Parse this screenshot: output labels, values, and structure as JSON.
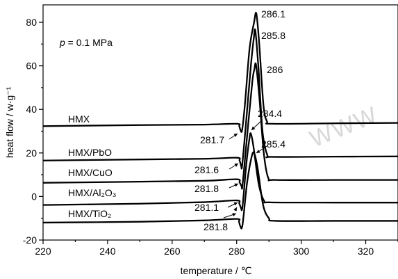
{
  "chart_data": {
    "type": "line",
    "xlabel": "temperature / ℃",
    "ylabel": "heat flow / w·g⁻¹",
    "xlim": [
      220,
      330
    ],
    "ylim": [
      -20,
      88
    ],
    "x_ticks": [
      220,
      240,
      260,
      280,
      300,
      320
    ],
    "y_ticks": [
      -20,
      0,
      20,
      40,
      60,
      80
    ],
    "grid": false,
    "legend": "none",
    "condition_prefix": "p",
    "condition_value": " = 0.1 MPa",
    "watermark": "WWW",
    "series": [
      {
        "name": "HMX",
        "points": [
          [
            220,
            32.3
          ],
          [
            250,
            32.8
          ],
          [
            270,
            33.0
          ],
          [
            280,
            33.4
          ],
          [
            280.8,
            32.3
          ],
          [
            281.2,
            30.4
          ],
          [
            281.7,
            30.6
          ],
          [
            282.6,
            43.0
          ],
          [
            284.0,
            68.0
          ],
          [
            285.4,
            80.0
          ],
          [
            286.1,
            84.0
          ],
          [
            287.0,
            70.0
          ],
          [
            288.3,
            42.0
          ],
          [
            289.4,
            34.5
          ],
          [
            291.0,
            33.4
          ],
          [
            310,
            33.6
          ],
          [
            330,
            33.8
          ]
        ],
        "peak_label": "286.1"
      },
      {
        "name": "HMX/PbO",
        "points": [
          [
            220,
            16.5
          ],
          [
            250,
            17.0
          ],
          [
            270,
            17.3
          ],
          [
            280,
            17.8
          ],
          [
            280.9,
            16.5
          ],
          [
            281.4,
            14.0
          ],
          [
            281.7,
            14.2
          ],
          [
            282.8,
            32.0
          ],
          [
            284.4,
            60.0
          ],
          [
            285.3,
            72.5
          ],
          [
            285.8,
            76.0
          ],
          [
            286.8,
            58.0
          ],
          [
            288.0,
            30.0
          ],
          [
            289.5,
            19.0
          ],
          [
            291.0,
            18.2
          ],
          [
            310,
            18.3
          ],
          [
            330,
            18.4
          ]
        ],
        "peak_label": "285.8"
      },
      {
        "name": "HMX/CuO",
        "points": [
          [
            220,
            6.3
          ],
          [
            250,
            6.8
          ],
          [
            270,
            7.2
          ],
          [
            280,
            7.9
          ],
          [
            280.9,
            6.5
          ],
          [
            281.5,
            4.8
          ],
          [
            281.8,
            5.0
          ],
          [
            283.0,
            24.0
          ],
          [
            284.8,
            52.0
          ],
          [
            285.5,
            58.5
          ],
          [
            286.0,
            60.5
          ],
          [
            287.0,
            46.0
          ],
          [
            288.4,
            20.0
          ],
          [
            289.8,
            8.5
          ],
          [
            292.0,
            7.6
          ],
          [
            310,
            7.6
          ],
          [
            330,
            7.6
          ]
        ],
        "peak_label": "286"
      },
      {
        "name": "HMX/Al₂O₃",
        "points": [
          [
            220,
            -3.9
          ],
          [
            250,
            -3.3
          ],
          [
            270,
            -2.6
          ],
          [
            280,
            -1.8
          ],
          [
            280.8,
            -3.2
          ],
          [
            281.3,
            -5.0
          ],
          [
            281.8,
            -4.8
          ],
          [
            283.0,
            15.0
          ],
          [
            284.0,
            27.0
          ],
          [
            284.4,
            28.8
          ],
          [
            285.2,
            23.0
          ],
          [
            286.8,
            6.0
          ],
          [
            288.5,
            -2.0
          ],
          [
            290.5,
            -2.7
          ],
          [
            310,
            -2.8
          ],
          [
            330,
            -2.8
          ]
        ],
        "peak_label": "284.4"
      },
      {
        "name": "HMX/TiO₂",
        "points": [
          [
            220,
            -12.0
          ],
          [
            250,
            -11.6
          ],
          [
            270,
            -11.0
          ],
          [
            280,
            -10.3
          ],
          [
            280.7,
            -11.5
          ],
          [
            281.1,
            -13.5
          ],
          [
            281.8,
            -13.2
          ],
          [
            283.2,
            6.0
          ],
          [
            284.6,
            18.0
          ],
          [
            285.4,
            20.0
          ],
          [
            286.5,
            13.0
          ],
          [
            288.2,
            -4.0
          ],
          [
            290.0,
            -10.0
          ],
          [
            292.0,
            -11.2
          ],
          [
            310,
            -11.2
          ],
          [
            330,
            -11.2
          ]
        ],
        "peak_label": "285.4"
      }
    ],
    "onset_labels": [
      "281.7",
      "281.6",
      "281.8",
      "281.1",
      "281.8"
    ]
  }
}
